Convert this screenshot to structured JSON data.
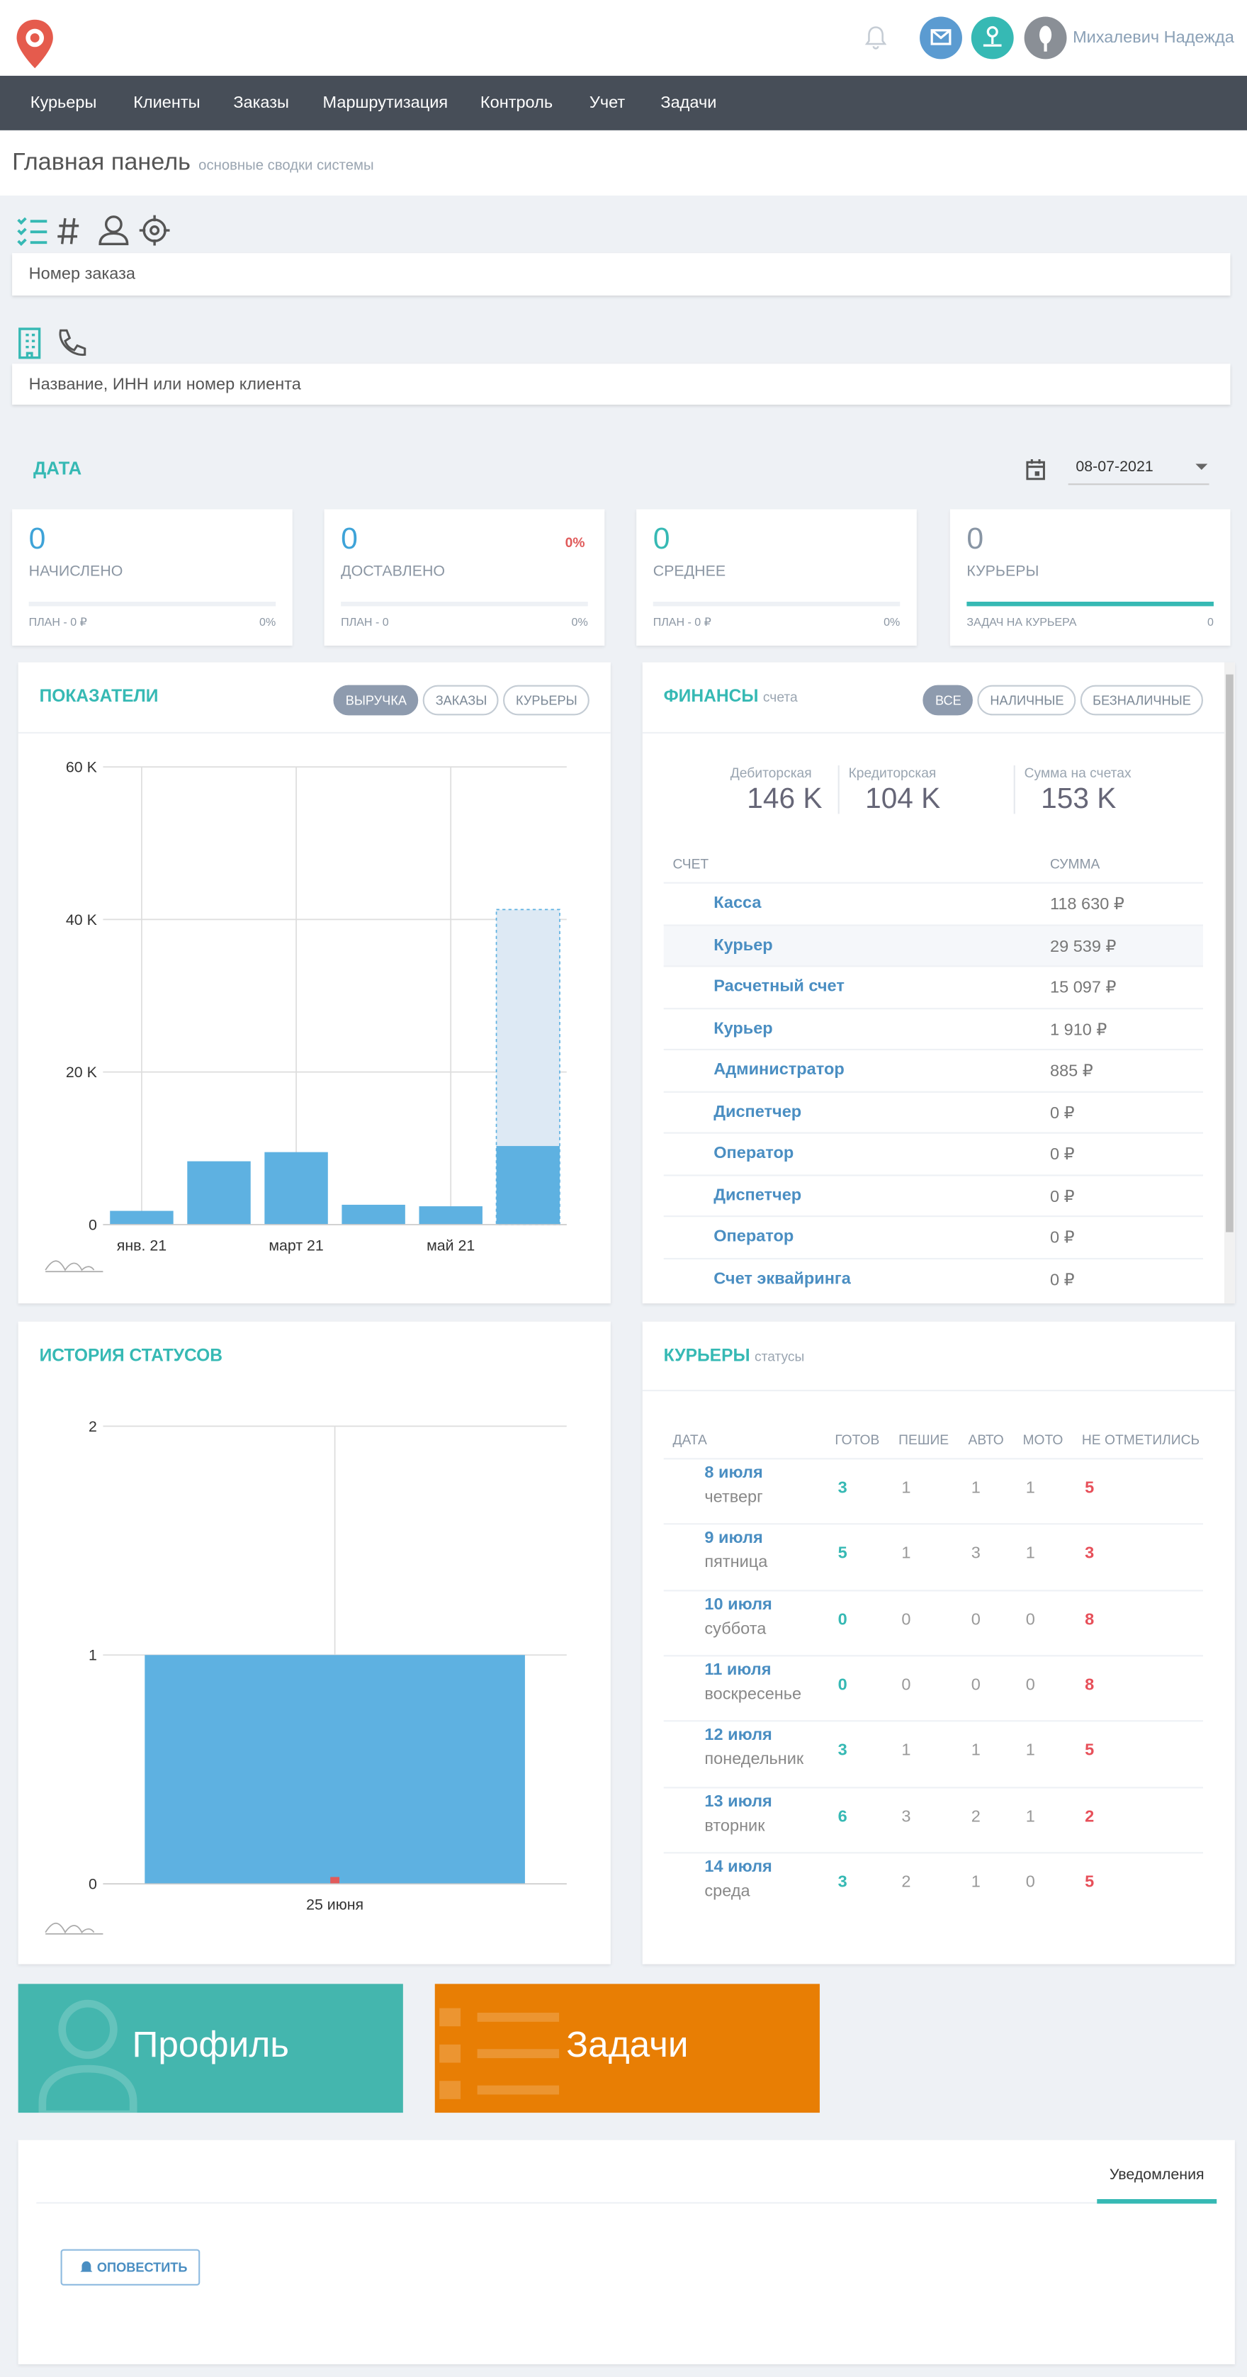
{
  "header": {
    "user_name": "Михалевич Надежда"
  },
  "nav": [
    "Курьеры",
    "Клиенты",
    "Заказы",
    "Маршрутизация",
    "Контроль",
    "Учет",
    "Задачи"
  ],
  "page": {
    "title": "Главная панель",
    "subtitle": "основные сводки системы"
  },
  "search": {
    "order_placeholder": "Номер заказа",
    "client_placeholder": "Название, ИНН или номер клиента"
  },
  "date": {
    "label": "ДАТА",
    "value": "08-07-2021"
  },
  "stats": [
    {
      "value": 0,
      "label": "НАЧИСЛЕНО",
      "footer": "ПЛАН - 0 ₽",
      "footer_value": "0%"
    },
    {
      "value": 0,
      "label": "ДОСТАВЛЕНО",
      "badge": "0%",
      "footer": "ПЛАН - 0",
      "footer_value": "0%"
    },
    {
      "value": 0,
      "label": "СРЕДНЕЕ",
      "footer": "ПЛАН - 0 ₽",
      "footer_value": "0%"
    },
    {
      "value": 0,
      "label": "КУРЬЕРЫ",
      "footer": "ЗАДАЧ НА КУРЬЕРА",
      "footer_value": "0"
    }
  ],
  "chart_data": [
    {
      "type": "bar",
      "title": "ПОКАЗАТЕЛИ",
      "tabs": [
        "ВЫРУЧКА",
        "ЗАКАЗЫ",
        "КУРЬЕРЫ"
      ],
      "categories": [
        "янв. 21",
        null,
        "март 21",
        null,
        "май 21",
        null
      ],
      "series": [
        {
          "color": "#dde9f4",
          "dashed": true,
          "values": [
            null,
            null,
            null,
            null,
            null,
            41300
          ]
        },
        {
          "color": "#5eb1e1",
          "values": [
            1800,
            8300,
            9500,
            2600,
            2400,
            10300
          ]
        }
      ],
      "ylim": [
        0,
        60000
      ],
      "yticks": [
        0,
        {
          "value": 20000,
          "label": "20 K"
        },
        {
          "value": 40000,
          "label": "40 K"
        },
        {
          "value": 60000,
          "label": "60 K"
        }
      ],
      "grid": true
    },
    {
      "type": "bar",
      "title": "ИСТОРИЯ СТАТУСОВ",
      "categories": [
        "25 июня"
      ],
      "series": [
        {
          "color": "#5eb1e1",
          "values": [
            1
          ]
        },
        {
          "color": "#e05a5a",
          "values": [
            0.03
          ]
        }
      ],
      "ylim": [
        0,
        2
      ],
      "yticks": [
        0,
        1,
        2
      ],
      "grid": true
    }
  ],
  "finances": {
    "title": "ФИНАНСЫ",
    "subtitle": "счета",
    "tabs": [
      "ВСЕ",
      "НАЛИЧНЫЕ",
      "БЕЗНАЛИЧНЫЕ"
    ],
    "summary": [
      {
        "label": "Дебиторская",
        "value": "146 K"
      },
      {
        "label": "Кредиторская",
        "value": "104 K"
      },
      {
        "label": "Сумма на счетах",
        "value": "153 K"
      }
    ],
    "columns": [
      "СЧЕТ",
      "СУММА"
    ],
    "rows": [
      [
        "Касса",
        "118 630 ₽"
      ],
      [
        "Курьер",
        "29 539 ₽"
      ],
      [
        "Расчетный счет",
        "15 097 ₽"
      ],
      [
        "Курьер",
        "1 910 ₽"
      ],
      [
        "Администратор",
        "885 ₽"
      ],
      [
        "Диспетчер",
        "0 ₽"
      ],
      [
        "Оператор",
        "0 ₽"
      ],
      [
        "Диспетчер",
        "0 ₽"
      ],
      [
        "Оператор",
        "0 ₽"
      ],
      [
        "Счет эквайринга",
        "0 ₽"
      ]
    ]
  },
  "couriers": {
    "title": "КУРЬЕРЫ",
    "subtitle": "статусы",
    "columns": [
      "ДАТА",
      "ГОТОВ",
      "ПЕШИЕ",
      "АВТО",
      "МОТО",
      "НЕ ОТМЕТИЛИСЬ"
    ],
    "rows": [
      {
        "date": "8 июля",
        "weekday": "четверг",
        "values": [
          3,
          1,
          1,
          1,
          5
        ]
      },
      {
        "date": "9 июля",
        "weekday": "пятница",
        "values": [
          5,
          1,
          3,
          1,
          3
        ]
      },
      {
        "date": "10 июля",
        "weekday": "суббота",
        "values": [
          0,
          0,
          0,
          0,
          8
        ]
      },
      {
        "date": "11 июля",
        "weekday": "воскресенье",
        "values": [
          0,
          0,
          0,
          0,
          8
        ]
      },
      {
        "date": "12 июля",
        "weekday": "понедельник",
        "values": [
          3,
          1,
          1,
          1,
          5
        ]
      },
      {
        "date": "13 июля",
        "weekday": "вторник",
        "values": [
          6,
          3,
          2,
          1,
          2
        ]
      },
      {
        "date": "14 июля",
        "weekday": "среда",
        "values": [
          3,
          2,
          1,
          0,
          5
        ]
      }
    ]
  },
  "tiles": {
    "profile": "Профиль",
    "tasks": "Задачи"
  },
  "notifications": {
    "tab": "Уведомления",
    "button": "ОПОВЕСТИТЬ"
  }
}
